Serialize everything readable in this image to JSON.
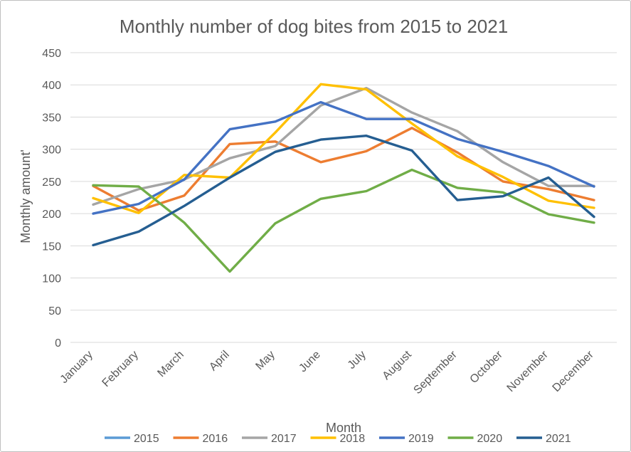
{
  "chart_data": {
    "type": "line",
    "title": "Monthly number of dog bites from 2015 to 2021",
    "xlabel": "Month",
    "ylabel": "Monthly amount'",
    "ylim": [
      0,
      450
    ],
    "yticks": [
      0,
      50,
      100,
      150,
      200,
      250,
      300,
      350,
      400,
      450
    ],
    "grid": true,
    "legend_position": "bottom",
    "categories": [
      "January",
      "February",
      "March",
      "April",
      "May",
      "June",
      "July",
      "August",
      "September",
      "October",
      "November",
      "December"
    ],
    "series": [
      {
        "name": "2015",
        "color": "#5b9bd5",
        "values": [
          null,
          null,
          null,
          null,
          null,
          null,
          null,
          null,
          null,
          null,
          null,
          null
        ]
      },
      {
        "name": "2016",
        "color": "#ed7d31",
        "values": [
          243,
          205,
          228,
          308,
          312,
          280,
          297,
          333,
          295,
          250,
          238,
          221
        ]
      },
      {
        "name": "2017",
        "color": "#a5a5a5",
        "values": [
          214,
          238,
          253,
          286,
          305,
          368,
          395,
          357,
          328,
          280,
          243,
          243
        ]
      },
      {
        "name": "2018",
        "color": "#ffc000",
        "values": [
          224,
          201,
          260,
          256,
          326,
          401,
          393,
          340,
          289,
          257,
          220,
          209
        ]
      },
      {
        "name": "2019",
        "color": "#4472c4",
        "values": [
          200,
          215,
          253,
          331,
          343,
          373,
          347,
          347,
          316,
          296,
          274,
          242
        ]
      },
      {
        "name": "2020",
        "color": "#70ad47",
        "values": [
          244,
          242,
          186,
          110,
          185,
          223,
          235,
          268,
          240,
          233,
          199,
          186
        ]
      },
      {
        "name": "2021",
        "color": "#255e91",
        "values": [
          151,
          172,
          212,
          256,
          296,
          315,
          321,
          298,
          221,
          227,
          256,
          195
        ]
      }
    ]
  }
}
